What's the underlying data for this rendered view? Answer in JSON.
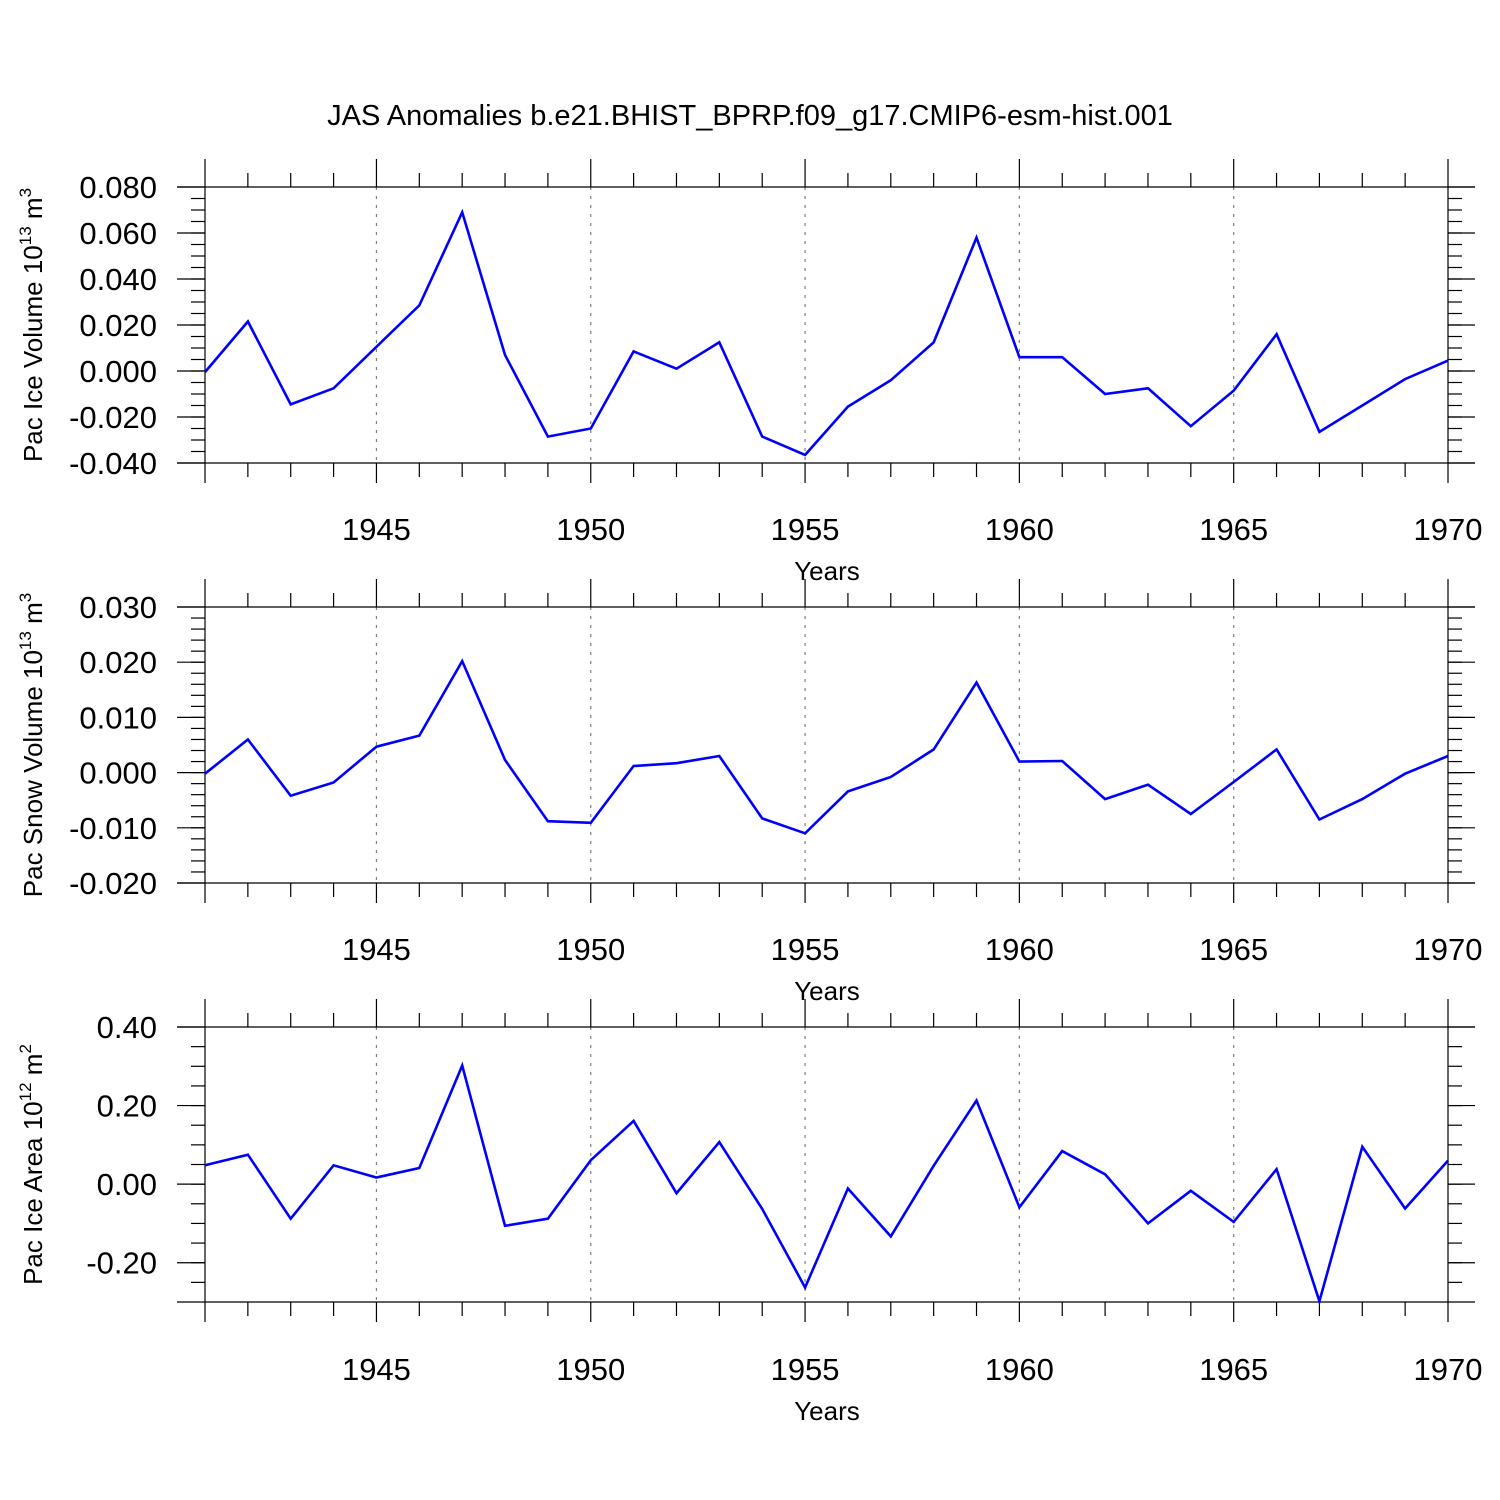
{
  "title": "JAS Anomalies b.e21.BHIST_BPRP.f09_g17.CMIP6-esm-hist.001",
  "colors": {
    "line": "#0000ff",
    "axis": "#000000",
    "grid": "#808080",
    "background": "#ffffff"
  },
  "chart_data": [
    {
      "type": "line",
      "ylabel": {
        "text": "Pac Ice Volume 10",
        "exponent": "13",
        "unit": " m",
        "unit_exponent": "3"
      },
      "xlabel": "Years",
      "xlim": [
        1941,
        1970
      ],
      "ylim": [
        -0.04,
        0.08
      ],
      "yticks": [
        -0.04,
        -0.02,
        0.0,
        0.02,
        0.04,
        0.06,
        0.08
      ],
      "ytick_labels": [
        "-0.040",
        "-0.020",
        "0.000",
        "0.020",
        "0.040",
        "0.060",
        "0.080"
      ],
      "yminor_step": 0.005,
      "xticks": [
        1945,
        1950,
        1955,
        1960,
        1965,
        1970
      ],
      "xtick_labels": [
        "1945",
        "1950",
        "1955",
        "1960",
        "1965",
        "1970"
      ],
      "grid": "vertical dashed at major x ticks",
      "series": [
        {
          "name": "Pac Ice Volume",
          "x": [
            1941,
            1942,
            1943,
            1944,
            1945,
            1946,
            1947,
            1948,
            1949,
            1950,
            1951,
            1952,
            1953,
            1954,
            1955,
            1956,
            1957,
            1958,
            1959,
            1960,
            1961,
            1962,
            1963,
            1964,
            1965,
            1966,
            1967,
            1968,
            1969,
            1970
          ],
          "values": [
            -0.0005,
            0.0215,
            -0.0145,
            -0.0075,
            0.0105,
            0.0285,
            0.069,
            0.007,
            -0.0285,
            -0.025,
            0.0085,
            0.001,
            0.0125,
            -0.0285,
            -0.0365,
            -0.0155,
            -0.004,
            0.0125,
            0.058,
            0.006,
            0.006,
            -0.01,
            -0.0075,
            -0.024,
            -0.0085,
            0.016,
            -0.0265,
            -0.015,
            -0.0035,
            0.0045
          ]
        }
      ]
    },
    {
      "type": "line",
      "ylabel": {
        "text": "Pac Snow Volume 10",
        "exponent": "13",
        "unit": " m",
        "unit_exponent": "3"
      },
      "xlabel": "Years",
      "xlim": [
        1941,
        1970
      ],
      "ylim": [
        -0.02,
        0.03
      ],
      "yticks": [
        -0.02,
        -0.01,
        0.0,
        0.01,
        0.02,
        0.03
      ],
      "ytick_labels": [
        "-0.020",
        "-0.010",
        "0.000",
        "0.010",
        "0.020",
        "0.030"
      ],
      "yminor_step": 0.002,
      "xticks": [
        1945,
        1950,
        1955,
        1960,
        1965,
        1970
      ],
      "xtick_labels": [
        "1945",
        "1950",
        "1955",
        "1960",
        "1965",
        "1970"
      ],
      "grid": "vertical dashed at major x ticks",
      "series": [
        {
          "name": "Pac Snow Volume",
          "x": [
            1941,
            1942,
            1943,
            1944,
            1945,
            1946,
            1947,
            1948,
            1949,
            1950,
            1951,
            1952,
            1953,
            1954,
            1955,
            1956,
            1957,
            1958,
            1959,
            1960,
            1961,
            1962,
            1963,
            1964,
            1965,
            1966,
            1967,
            1968,
            1969,
            1970
          ],
          "values": [
            -0.0002,
            0.006,
            -0.0042,
            -0.0018,
            0.0047,
            0.0067,
            0.0202,
            0.0023,
            -0.0088,
            -0.0091,
            0.0012,
            0.0017,
            0.003,
            -0.0083,
            -0.011,
            -0.0034,
            -0.0008,
            0.0042,
            0.0163,
            0.002,
            0.0021,
            -0.0048,
            -0.0022,
            -0.0075,
            -0.0017,
            0.0042,
            -0.0085,
            -0.0048,
            -0.0002,
            0.003
          ]
        }
      ]
    },
    {
      "type": "line",
      "ylabel": {
        "text": "Pac Ice Area 10",
        "exponent": "12",
        "unit": " m",
        "unit_exponent": "2"
      },
      "xlabel": "Years",
      "xlim": [
        1941,
        1970
      ],
      "ylim": [
        -0.3,
        0.4
      ],
      "yticks": [
        -0.2,
        0.0,
        0.2,
        0.4
      ],
      "ytick_labels": [
        "-0.20",
        "0.00",
        "0.20",
        "0.40"
      ],
      "yminor_step": 0.05,
      "xticks": [
        1945,
        1950,
        1955,
        1960,
        1965,
        1970
      ],
      "xtick_labels": [
        "1945",
        "1950",
        "1955",
        "1960",
        "1965",
        "1970"
      ],
      "grid": "vertical dashed at major x ticks",
      "series": [
        {
          "name": "Pac Ice Area",
          "x": [
            1941,
            1942,
            1943,
            1944,
            1945,
            1946,
            1947,
            1948,
            1949,
            1950,
            1951,
            1952,
            1953,
            1954,
            1955,
            1956,
            1957,
            1958,
            1959,
            1960,
            1961,
            1962,
            1963,
            1964,
            1965,
            1966,
            1967,
            1968,
            1969,
            1970
          ],
          "values": [
            0.048,
            0.075,
            -0.088,
            0.048,
            0.017,
            0.041,
            0.302,
            -0.106,
            -0.088,
            0.061,
            0.161,
            -0.023,
            0.107,
            -0.063,
            -0.263,
            -0.011,
            -0.133,
            0.047,
            0.213,
            -0.059,
            0.084,
            0.025,
            -0.1,
            -0.017,
            -0.096,
            0.038,
            -0.298,
            0.095,
            -0.062,
            0.06
          ]
        }
      ]
    }
  ]
}
